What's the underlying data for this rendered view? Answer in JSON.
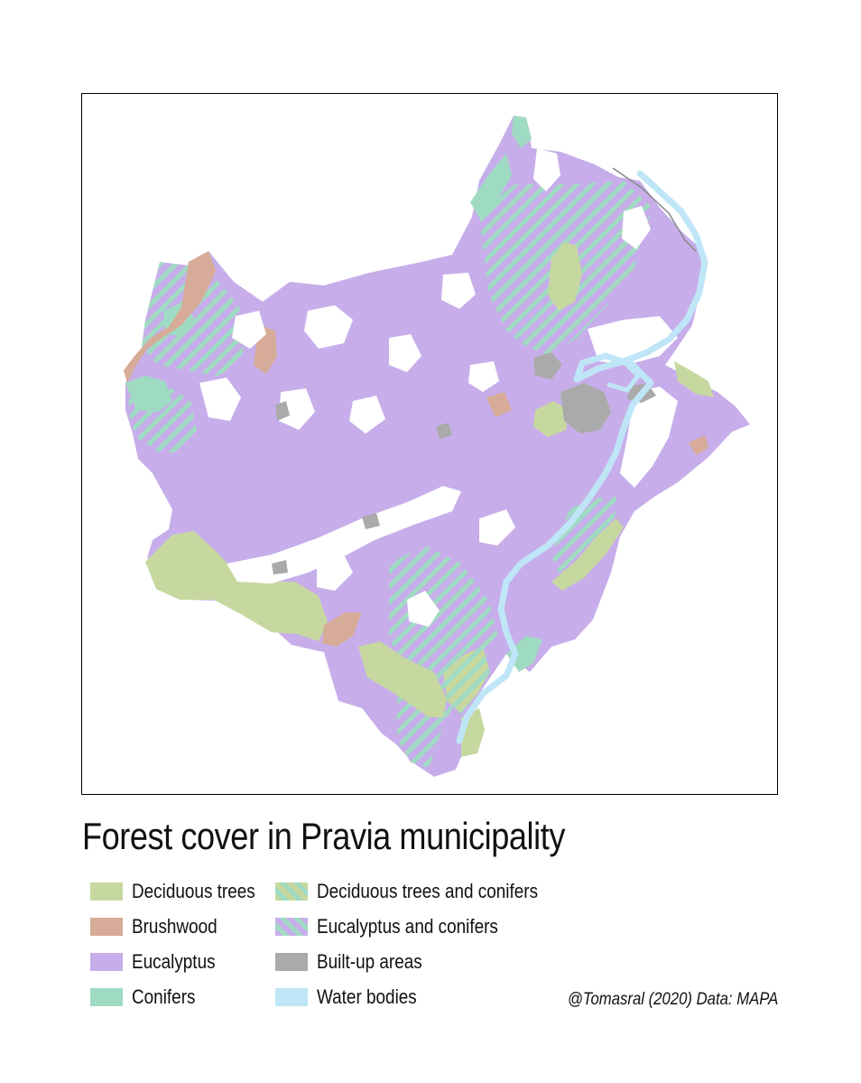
{
  "title": "Forest cover in Pravia municipality",
  "credit": "@Tomasral (2020) Data: MAPA",
  "colors": {
    "deciduous": "#c6d8a0",
    "brushwood": "#d6ab97",
    "eucalyptus": "#c7aeea",
    "conifers": "#9fdbc2",
    "builtup": "#aaaaaa",
    "water": "#bfe6f7",
    "road": "#888888"
  },
  "legend": [
    {
      "label": "Deciduous trees",
      "key": "deciduous",
      "pattern": "solid"
    },
    {
      "label": "Brushwood",
      "key": "brushwood",
      "pattern": "solid"
    },
    {
      "label": "Eucalyptus",
      "key": "eucalyptus",
      "pattern": "solid"
    },
    {
      "label": "Conifers",
      "key": "conifers",
      "pattern": "solid"
    },
    {
      "label": "Deciduous trees and conifers",
      "key": "deciduous-conifers",
      "pattern": "hatch"
    },
    {
      "label": "Eucalyptus and conifers",
      "key": "eucalyptus-conifers",
      "pattern": "hatch"
    },
    {
      "label": "Built-up areas",
      "key": "builtup",
      "pattern": "solid"
    },
    {
      "label": "Water bodies",
      "key": "water",
      "pattern": "solid"
    }
  ]
}
